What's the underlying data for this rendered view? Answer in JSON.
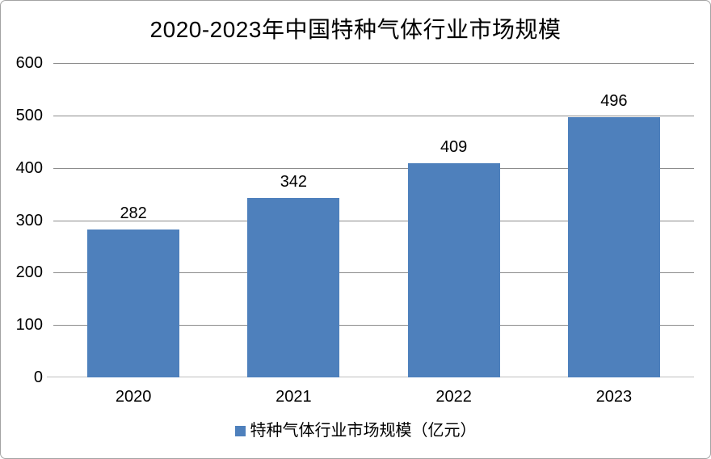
{
  "chart_data": {
    "type": "bar",
    "title": "2020-2023年中国特种气体行业市场规模",
    "categories": [
      "2020",
      "2021",
      "2022",
      "2023"
    ],
    "values": [
      282,
      342,
      409,
      496
    ],
    "series_name": "特种气体行业市场规模（亿元）",
    "xlabel": "",
    "ylabel": "",
    "ylim": [
      0,
      600
    ],
    "yticks": [
      0,
      100,
      200,
      300,
      400,
      500,
      600
    ],
    "grid": true,
    "legend_position": "bottom",
    "bar_color": "#4E80BC",
    "gridline_color": "#8C8C8C",
    "axis_line_color": "#BFBFBF",
    "text_color": "#000000",
    "background_color": "#FFFFFF",
    "border_color": "#A3A3A3"
  }
}
